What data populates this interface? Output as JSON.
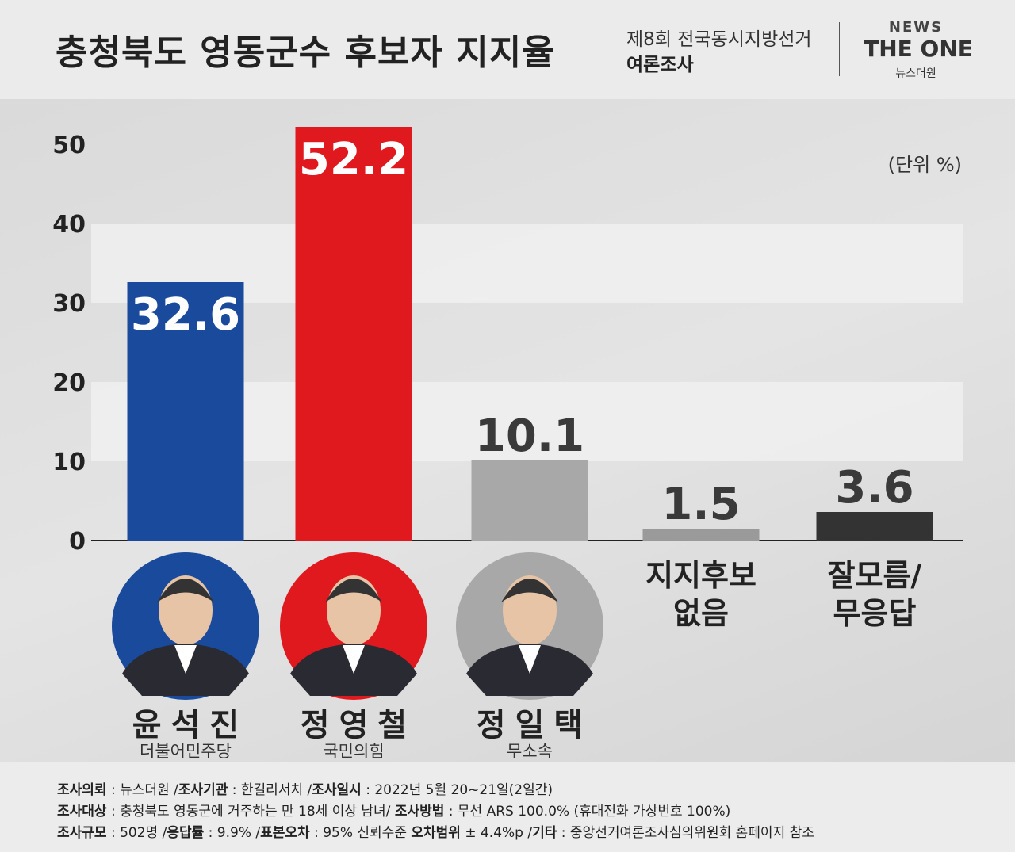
{
  "header": {
    "title": "충청북도 영동군수 후보자 지지율",
    "subtitle": "제8회 전국동시지방선거",
    "subtitle2": "여론조사",
    "logo_top": "NEWS",
    "logo_main": "THE ONE",
    "logo_sub": "뉴스더원"
  },
  "chart_data": {
    "type": "bar",
    "unit_label": "(단위 %)",
    "categories": [
      "윤석진",
      "정영철",
      "정일택",
      "지지후보\n없음",
      "잘모름/\n무응답"
    ],
    "parties": [
      "더불어민주당",
      "국민의힘",
      "무소속",
      null,
      null
    ],
    "values": [
      32.6,
      52.2,
      10.1,
      1.5,
      3.6
    ],
    "colors": [
      "#1a4a9b",
      "#e0191f",
      "#a8a8a8",
      "#9a9a9a",
      "#333333"
    ],
    "ylim": [
      0,
      55
    ],
    "yticks": [
      0,
      10,
      20,
      30,
      40,
      50
    ],
    "grid": true
  },
  "footer": {
    "lines": [
      [
        {
          "text": "조사의뢰",
          "bold": true
        },
        {
          "text": " : 뉴스더원 /",
          "bold": false
        },
        {
          "text": "조사기관",
          "bold": true
        },
        {
          "text": " : 한길리서치 /",
          "bold": false
        },
        {
          "text": "조사일시",
          "bold": true
        },
        {
          "text": " : 2022년 5월 20~21일(2일간)",
          "bold": false
        }
      ],
      [
        {
          "text": "조사대상",
          "bold": true
        },
        {
          "text": " : 충청북도 영동군에 거주하는 만 18세 이상 남녀/ ",
          "bold": false
        },
        {
          "text": "조사방법",
          "bold": true
        },
        {
          "text": " : 무선 ARS 100.0% (휴대전화 가상번호 100%)",
          "bold": false
        }
      ],
      [
        {
          "text": "조사규모",
          "bold": true
        },
        {
          "text": " : 502명 /",
          "bold": false
        },
        {
          "text": "응답률",
          "bold": true
        },
        {
          "text": " : 9.9% /",
          "bold": false
        },
        {
          "text": "표본오차",
          "bold": true
        },
        {
          "text": " : 95% 신뢰수준 ",
          "bold": false
        },
        {
          "text": "오차범위",
          "bold": true
        },
        {
          "text": " ± 4.4%p /",
          "bold": false
        },
        {
          "text": "기타",
          "bold": true
        },
        {
          "text": " : 중앙선거여론조사심의위원회 홈페이지 참조",
          "bold": false
        }
      ]
    ]
  }
}
